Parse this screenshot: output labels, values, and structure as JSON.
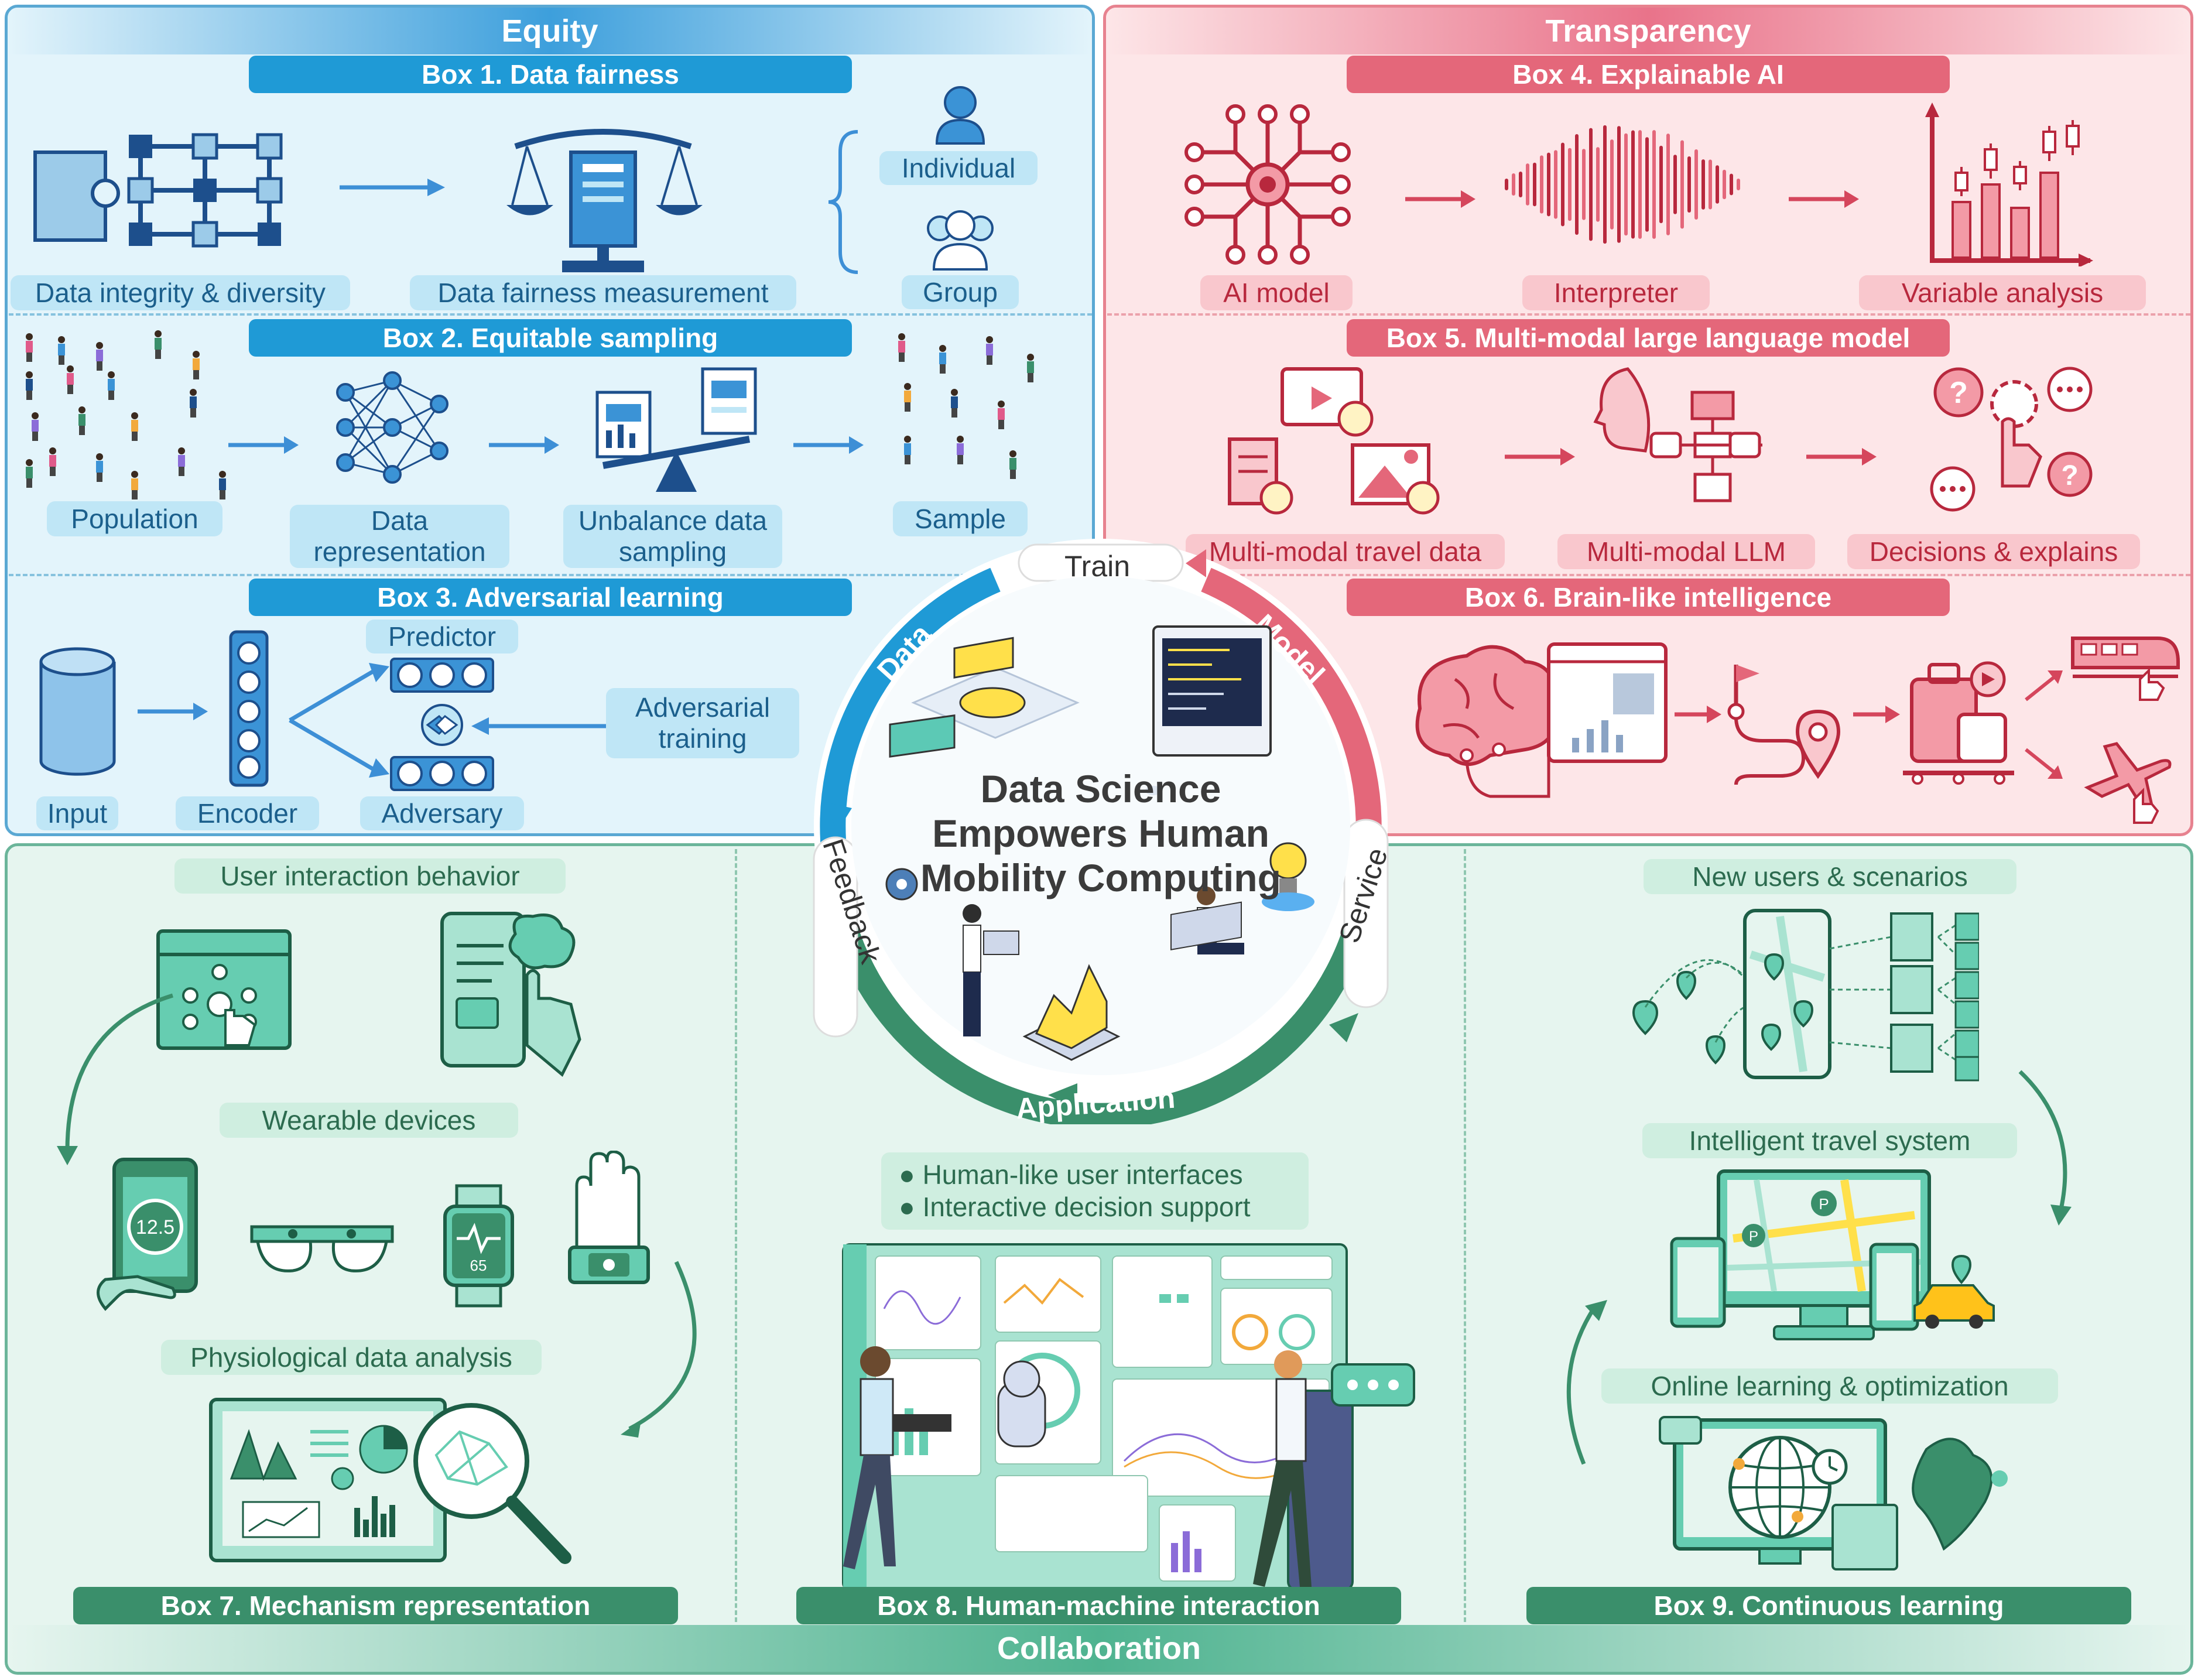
{
  "equity": {
    "title": "Equity",
    "box1": {
      "title": "Box 1. Data fairness",
      "integrity": "Data integrity & diversity",
      "measurement": "Data fairness measurement",
      "individual": "Individual",
      "group": "Group"
    },
    "box2": {
      "title": "Box 2. Equitable sampling",
      "population": "Population",
      "representation": "Data representation",
      "unbalance": "Unbalance data sampling",
      "sample": "Sample"
    },
    "box3": {
      "title": "Box 3. Adversarial learning",
      "input": "Input",
      "encoder": "Encoder",
      "predictor": "Predictor",
      "adversary": "Adversary",
      "adv_training": "Adversarial training"
    }
  },
  "transparency": {
    "title": "Transparency",
    "box4": {
      "title": "Box 4. Explainable AI",
      "ai_model": "AI model",
      "interpreter": "Interpreter",
      "variable": "Variable analysis"
    },
    "box5": {
      "title": "Box 5. Multi-modal large language model",
      "travel_data": "Multi-modal travel data",
      "llm": "Multi-modal LLM",
      "decisions": "Decisions & explains"
    },
    "box6": {
      "title": "Box 6. Brain-like intelligence"
    }
  },
  "center": {
    "title_line1": "Data Science",
    "title_line2": "Empowers Human",
    "title_line3": "Mobility Computing",
    "ring": {
      "train": "Train",
      "data": "Data",
      "model": "Model",
      "feedback": "Feedback",
      "service": "Service",
      "application": "Application"
    }
  },
  "collaboration": {
    "title": "Collaboration",
    "box7": {
      "title": "Box 7. Mechanism representation",
      "user_interaction": "User interaction behavior",
      "wearable": "Wearable devices",
      "physiological": "Physiological data analysis",
      "phone_value": "12.5",
      "watch_value": "65"
    },
    "box8": {
      "title": "Box 8. Human-machine interaction",
      "bullet1": "Human-like user interfaces",
      "bullet2": "Interactive decision support"
    },
    "box9": {
      "title": "Box 9. Continuous learning",
      "new_users": "New users & scenarios",
      "intelligent": "Intelligent travel system",
      "online": "Online learning & optimization"
    }
  },
  "colors": {
    "equity": "#1f9ad6",
    "transparency": "#e4677a",
    "collaboration": "#3a8f6b"
  }
}
